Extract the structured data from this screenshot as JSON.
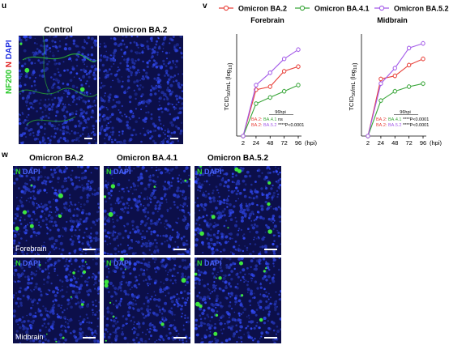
{
  "panels": {
    "u": {
      "label": "u",
      "headers": [
        "Control",
        "Omicron BA.2"
      ],
      "ylabel_parts": [
        {
          "text": "NF200",
          "color": "#28c828"
        },
        {
          "text": " N",
          "color": "#e02020"
        },
        {
          "text": " DAPI",
          "color": "#2030e0"
        }
      ]
    },
    "v": {
      "label": "v",
      "legend": [
        {
          "name": "Omicron BA.2",
          "color": "#e8413a"
        },
        {
          "name": "Omicron BA.4.1",
          "color": "#3aa63a"
        },
        {
          "name": "Omicron BA.5.2",
          "color": "#a35ae8"
        }
      ],
      "hpi_label": "(hpi)",
      "ylabel_text": "TCID",
      "ylabel_sub": "50",
      "ylabel_rest": "/mL (log",
      "ylabel_sub2": "10",
      "ylabel_end": ")"
    },
    "w": {
      "label": "w",
      "headers": [
        "Omicron BA.2",
        "Omicron BA.4.1",
        "Omicron BA.5.2"
      ],
      "row_labels": [
        "Forebrain",
        "Midbrain"
      ],
      "stain": {
        "n": "N",
        "dapi": " DAPI"
      }
    }
  },
  "chart_data": [
    {
      "type": "line",
      "title": "Forebrain",
      "x": [
        2,
        24,
        48,
        72,
        96
      ],
      "xlabel": "(hpi)",
      "ylabel": "TCID50/mL (log10)",
      "series": [
        {
          "name": "Omicron BA.2",
          "values": [
            2.0,
            3.5,
            3.6,
            4.1,
            4.25
          ]
        },
        {
          "name": "Omicron BA.4.1",
          "values": [
            2.0,
            3.05,
            3.25,
            3.45,
            3.65
          ]
        },
        {
          "name": "Omicron BA.5.2",
          "values": [
            2.0,
            3.65,
            4.05,
            4.5,
            4.8
          ]
        }
      ],
      "stats": {
        "header": "96hpi",
        "lines": [
          {
            "a": "BA.2",
            "b": "BA.4.1",
            "p": "ns"
          },
          {
            "a": "BA.2",
            "b": "BA.5.2",
            "p": "****P<0.0001"
          }
        ]
      }
    },
    {
      "type": "line",
      "title": "Midbrain",
      "x": [
        2,
        24,
        48,
        72,
        96
      ],
      "xlabel": "(hpi)",
      "ylabel": "TCID50/mL (log10)",
      "series": [
        {
          "name": "Omicron BA.2",
          "values": [
            2.0,
            3.85,
            3.95,
            4.3,
            4.5
          ]
        },
        {
          "name": "Omicron BA.4.1",
          "values": [
            2.0,
            3.15,
            3.45,
            3.6,
            3.7
          ]
        },
        {
          "name": "Omicron BA.5.2",
          "values": [
            2.0,
            3.7,
            4.2,
            4.85,
            5.0
          ]
        }
      ],
      "stats": {
        "header": "96hpi",
        "lines": [
          {
            "a": "BA.2",
            "b": "BA.4.1",
            "p": "****P<0.0001"
          },
          {
            "a": "BA.2",
            "b": "BA.5.2",
            "p": "****P<0.0001"
          }
        ]
      }
    }
  ]
}
